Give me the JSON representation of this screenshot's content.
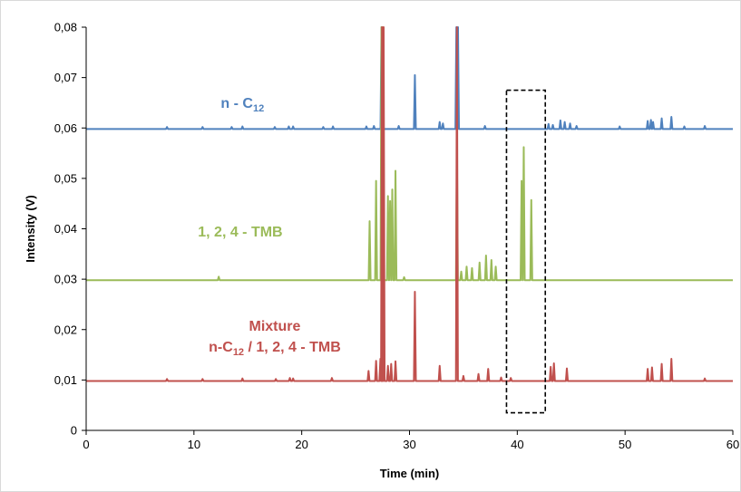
{
  "chart_data": {
    "type": "line",
    "xlabel": "Time (min)",
    "ylabel": "Intensity (V)",
    "xlim": [
      0,
      60
    ],
    "ylim": [
      0,
      0.08
    ],
    "x_ticks": [
      "0",
      "10",
      "20",
      "30",
      "40",
      "50",
      "60"
    ],
    "y_ticks": [
      "0",
      "0,01",
      "0,02",
      "0,03",
      "0,04",
      "0,05",
      "0,06",
      "0,07",
      "0,08"
    ],
    "grid": false,
    "legend": "none",
    "highlight_box": {
      "x": [
        39,
        42.6
      ],
      "y": [
        0.0035,
        0.0675
      ]
    },
    "series": [
      {
        "key": "c12",
        "label_main": "n - C",
        "label_sub": "12",
        "color": "#4f81bd",
        "label_pos": [
          14.5,
          0.064
        ],
        "baseline": 0.0598,
        "peaks": [
          [
            7.5,
            0.0602
          ],
          [
            10.8,
            0.0602
          ],
          [
            13.5,
            0.0602
          ],
          [
            14.5,
            0.0603
          ],
          [
            17.5,
            0.0602
          ],
          [
            18.8,
            0.0603
          ],
          [
            19.2,
            0.0603
          ],
          [
            22.0,
            0.0602
          ],
          [
            22.9,
            0.0603
          ],
          [
            26.0,
            0.0603
          ],
          [
            26.7,
            0.0604
          ],
          [
            27.4,
            0.08
          ],
          [
            29.0,
            0.0604
          ],
          [
            30.5,
            0.0705
          ],
          [
            32.8,
            0.0612
          ],
          [
            33.1,
            0.0609
          ],
          [
            34.35,
            0.08
          ],
          [
            34.5,
            0.08
          ],
          [
            37.0,
            0.0604
          ],
          [
            42.9,
            0.0608
          ],
          [
            43.3,
            0.0606
          ],
          [
            44.0,
            0.0615
          ],
          [
            44.4,
            0.0612
          ],
          [
            44.9,
            0.0609
          ],
          [
            45.5,
            0.0604
          ],
          [
            49.5,
            0.0603
          ],
          [
            52.1,
            0.0614
          ],
          [
            52.4,
            0.0616
          ],
          [
            52.6,
            0.0612
          ],
          [
            53.4,
            0.0619
          ],
          [
            54.3,
            0.0622
          ],
          [
            55.5,
            0.0603
          ],
          [
            57.4,
            0.0604
          ]
        ]
      },
      {
        "key": "tmb",
        "label_main": "1, 2, 4 - TMB",
        "label_sub": "",
        "color": "#9bbb59",
        "label_pos": [
          14.3,
          0.0385
        ],
        "baseline": 0.0298,
        "peaks": [
          [
            12.3,
            0.0305
          ],
          [
            26.3,
            0.0415
          ],
          [
            26.9,
            0.0495
          ],
          [
            27.4,
            0.08
          ],
          [
            27.55,
            0.08
          ],
          [
            28.0,
            0.0465
          ],
          [
            28.2,
            0.0455
          ],
          [
            28.4,
            0.0478
          ],
          [
            28.7,
            0.0515
          ],
          [
            29.5,
            0.0304
          ],
          [
            34.4,
            0.0555
          ],
          [
            34.8,
            0.0315
          ],
          [
            35.3,
            0.0325
          ],
          [
            35.8,
            0.0322
          ],
          [
            36.5,
            0.0333
          ],
          [
            37.1,
            0.0347
          ],
          [
            37.6,
            0.0338
          ],
          [
            38.0,
            0.0325
          ],
          [
            40.4,
            0.0495
          ],
          [
            40.6,
            0.0562
          ],
          [
            41.3,
            0.0457
          ]
        ]
      },
      {
        "key": "mix",
        "label_main": "Mixture",
        "label_line2": "n-C",
        "label_sub": "12",
        "label_rest": " / 1, 2, 4 - TMB",
        "color": "#c0504d",
        "label_pos": [
          17.5,
          0.0198
        ],
        "baseline": 0.0098,
        "peaks": [
          [
            7.5,
            0.0102
          ],
          [
            10.8,
            0.0102
          ],
          [
            14.5,
            0.0103
          ],
          [
            17.6,
            0.0102
          ],
          [
            18.9,
            0.0104
          ],
          [
            19.2,
            0.0103
          ],
          [
            22.8,
            0.0104
          ],
          [
            26.2,
            0.0118
          ],
          [
            26.9,
            0.0138
          ],
          [
            27.3,
            0.0142
          ],
          [
            27.45,
            0.08
          ],
          [
            27.6,
            0.08
          ],
          [
            28.0,
            0.0128
          ],
          [
            28.3,
            0.0132
          ],
          [
            28.7,
            0.0137
          ],
          [
            30.5,
            0.0275
          ],
          [
            32.8,
            0.0128
          ],
          [
            34.4,
            0.08
          ],
          [
            35.0,
            0.0108
          ],
          [
            36.4,
            0.0112
          ],
          [
            37.3,
            0.0122
          ],
          [
            38.5,
            0.0105
          ],
          [
            39.4,
            0.0104
          ],
          [
            43.1,
            0.0126
          ],
          [
            43.4,
            0.0133
          ],
          [
            44.6,
            0.0123
          ],
          [
            52.1,
            0.0122
          ],
          [
            52.5,
            0.0125
          ],
          [
            53.4,
            0.0132
          ],
          [
            54.3,
            0.0142
          ],
          [
            57.4,
            0.0103
          ]
        ]
      }
    ]
  }
}
